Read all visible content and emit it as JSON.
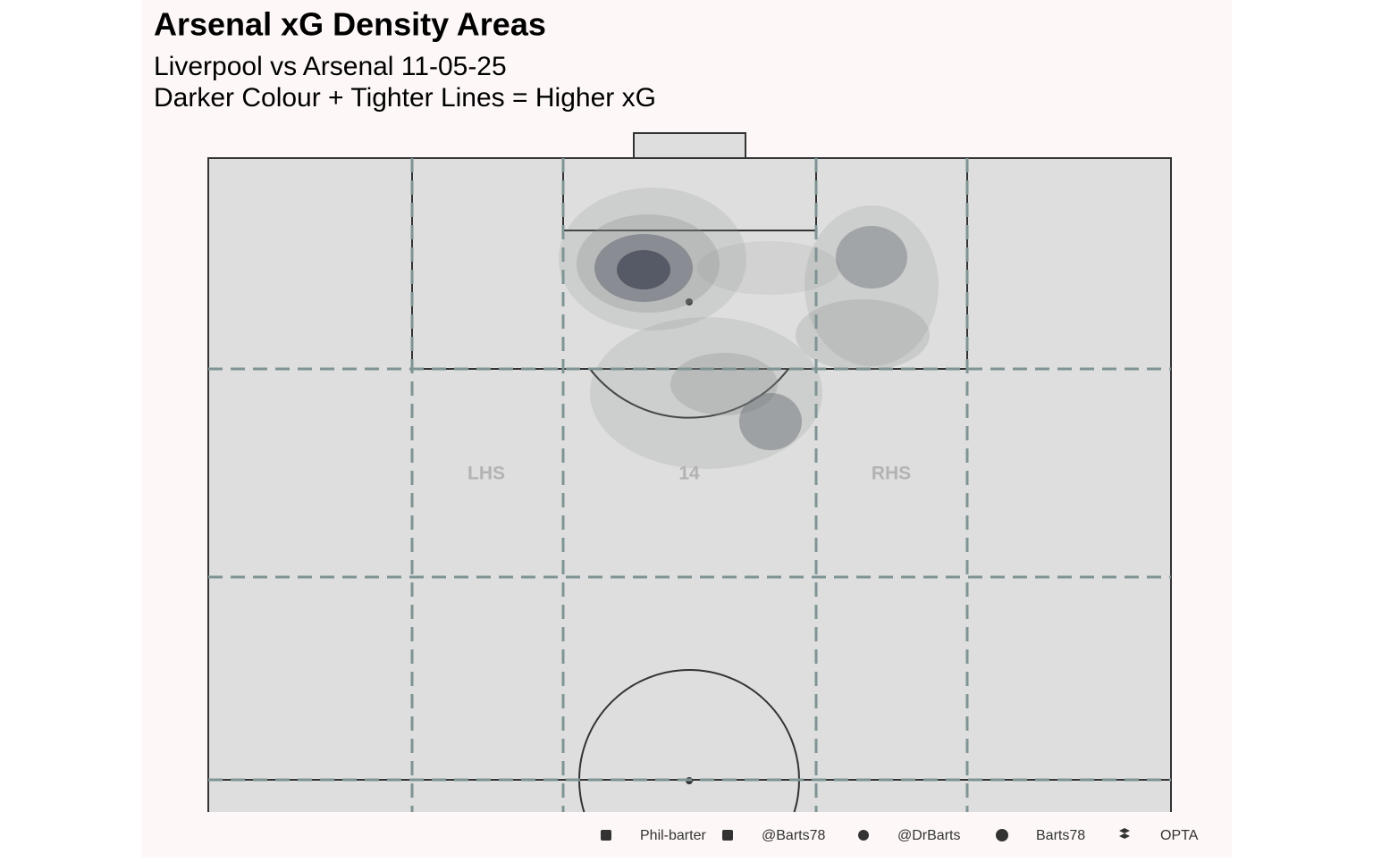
{
  "chart_data": {
    "type": "density",
    "title": "Arsenal xG Density Areas",
    "subtitle": [
      "Liverpool vs Arsenal 11-05-25",
      "Darker Colour + Tighter Lines = Higher xG"
    ],
    "zone_labels": [
      "LHS",
      "14",
      "RHS"
    ],
    "credits": [
      "Phil-barter",
      "@Barts78",
      "@DrBarts",
      "Barts78",
      "OPTA"
    ]
  }
}
